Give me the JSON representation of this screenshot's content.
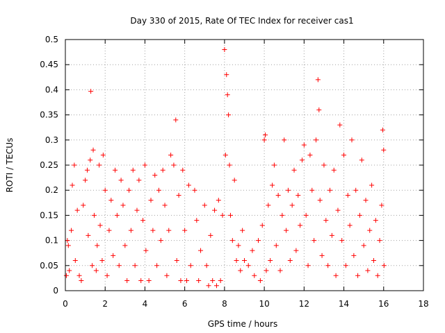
{
  "chart_data": {
    "type": "scatter",
    "title": "Day 330 of 2015, Rate Of TEC Index for receiver cas1",
    "xlabel": "GPS time / hours",
    "ylabel": "ROTI / TECUs",
    "xlim": [
      0,
      18
    ],
    "ylim": [
      0,
      0.5
    ],
    "grid": true,
    "marker": "+",
    "marker_color": "#ff0000",
    "x_ticks": [
      0,
      2,
      4,
      6,
      8,
      10,
      12,
      14,
      16,
      18
    ],
    "x_tick_labels": [
      "0",
      "2",
      "4",
      "6",
      "8",
      "10",
      "12",
      "14",
      "16",
      "18"
    ],
    "y_ticks": [
      0,
      0.05,
      0.1,
      0.15,
      0.2,
      0.25,
      0.3,
      0.35,
      0.4,
      0.45,
      0.5
    ],
    "y_tick_labels": [
      "0",
      "0.05",
      "0.1",
      "0.15",
      "0.2",
      "0.25",
      "0.3",
      "0.35",
      "0.4",
      "0.45",
      "0.5"
    ],
    "series": [
      {
        "name": "ROTI cas1",
        "points": [
          [
            0.05,
            0.03
          ],
          [
            0.1,
            0.1
          ],
          [
            0.15,
            0.09
          ],
          [
            0.2,
            0.04
          ],
          [
            0.3,
            0.12
          ],
          [
            0.35,
            0.21
          ],
          [
            0.45,
            0.25
          ],
          [
            0.5,
            0.06
          ],
          [
            0.6,
            0.16
          ],
          [
            0.7,
            0.03
          ],
          [
            0.8,
            0.02
          ],
          [
            0.9,
            0.17
          ],
          [
            1.0,
            0.22
          ],
          [
            1.1,
            0.24
          ],
          [
            1.15,
            0.11
          ],
          [
            1.25,
            0.26
          ],
          [
            1.28,
            0.397
          ],
          [
            1.35,
            0.05
          ],
          [
            1.4,
            0.28
          ],
          [
            1.45,
            0.15
          ],
          [
            1.55,
            0.04
          ],
          [
            1.6,
            0.09
          ],
          [
            1.7,
            0.25
          ],
          [
            1.75,
            0.13
          ],
          [
            1.85,
            0.06
          ],
          [
            1.9,
            0.27
          ],
          [
            2.0,
            0.2
          ],
          [
            2.1,
            0.03
          ],
          [
            2.2,
            0.12
          ],
          [
            2.3,
            0.18
          ],
          [
            2.4,
            0.07
          ],
          [
            2.5,
            0.24
          ],
          [
            2.6,
            0.15
          ],
          [
            2.7,
            0.05
          ],
          [
            2.8,
            0.22
          ],
          [
            2.9,
            0.17
          ],
          [
            3.0,
            0.09
          ],
          [
            3.1,
            0.02
          ],
          [
            3.2,
            0.2
          ],
          [
            3.3,
            0.12
          ],
          [
            3.4,
            0.24
          ],
          [
            3.5,
            0.05
          ],
          [
            3.6,
            0.16
          ],
          [
            3.7,
            0.22
          ],
          [
            3.8,
            0.02
          ],
          [
            3.9,
            0.14
          ],
          [
            4.0,
            0.25
          ],
          [
            4.05,
            0.08
          ],
          [
            4.2,
            0.02
          ],
          [
            4.3,
            0.18
          ],
          [
            4.4,
            0.12
          ],
          [
            4.5,
            0.23
          ],
          [
            4.6,
            0.05
          ],
          [
            4.7,
            0.2
          ],
          [
            4.8,
            0.1
          ],
          [
            4.9,
            0.24
          ],
          [
            5.0,
            0.17
          ],
          [
            5.1,
            0.03
          ],
          [
            5.2,
            0.12
          ],
          [
            5.3,
            0.27
          ],
          [
            5.45,
            0.25
          ],
          [
            5.55,
            0.34
          ],
          [
            5.6,
            0.06
          ],
          [
            5.7,
            0.19
          ],
          [
            5.8,
            0.02
          ],
          [
            5.9,
            0.24
          ],
          [
            6.0,
            0.12
          ],
          [
            6.1,
            0.02
          ],
          [
            6.2,
            0.21
          ],
          [
            6.3,
            0.05
          ],
          [
            6.5,
            0.2
          ],
          [
            6.6,
            0.14
          ],
          [
            6.7,
            0.02
          ],
          [
            6.8,
            0.08
          ],
          [
            7.0,
            0.17
          ],
          [
            7.1,
            0.05
          ],
          [
            7.2,
            0.01
          ],
          [
            7.3,
            0.11
          ],
          [
            7.4,
            0.02
          ],
          [
            7.5,
            0.16
          ],
          [
            7.6,
            0.01
          ],
          [
            7.7,
            0.18
          ],
          [
            7.8,
            0.02
          ],
          [
            7.9,
            0.15
          ],
          [
            8.0,
            0.48
          ],
          [
            8.05,
            0.27
          ],
          [
            8.1,
            0.43
          ],
          [
            8.15,
            0.39
          ],
          [
            8.2,
            0.35
          ],
          [
            8.25,
            0.25
          ],
          [
            8.3,
            0.15
          ],
          [
            8.4,
            0.1
          ],
          [
            8.5,
            0.22
          ],
          [
            8.6,
            0.06
          ],
          [
            8.7,
            0.09
          ],
          [
            8.8,
            0.04
          ],
          [
            8.9,
            0.12
          ],
          [
            9.0,
            0.06
          ],
          [
            9.2,
            0.05
          ],
          [
            9.4,
            0.08
          ],
          [
            9.5,
            0.03
          ],
          [
            9.7,
            0.1
          ],
          [
            9.8,
            0.02
          ],
          [
            9.9,
            0.13
          ],
          [
            10.0,
            0.3
          ],
          [
            10.05,
            0.31
          ],
          [
            10.1,
            0.04
          ],
          [
            10.2,
            0.17
          ],
          [
            10.3,
            0.06
          ],
          [
            10.4,
            0.21
          ],
          [
            10.5,
            0.25
          ],
          [
            10.6,
            0.09
          ],
          [
            10.7,
            0.19
          ],
          [
            10.8,
            0.04
          ],
          [
            10.9,
            0.15
          ],
          [
            11.0,
            0.3
          ],
          [
            11.1,
            0.12
          ],
          [
            11.2,
            0.2
          ],
          [
            11.3,
            0.06
          ],
          [
            11.4,
            0.17
          ],
          [
            11.5,
            0.24
          ],
          [
            11.6,
            0.08
          ],
          [
            11.7,
            0.19
          ],
          [
            11.8,
            0.13
          ],
          [
            11.9,
            0.26
          ],
          [
            12.0,
            0.29
          ],
          [
            12.1,
            0.15
          ],
          [
            12.2,
            0.05
          ],
          [
            12.3,
            0.27
          ],
          [
            12.4,
            0.2
          ],
          [
            12.5,
            0.1
          ],
          [
            12.6,
            0.3
          ],
          [
            12.7,
            0.42
          ],
          [
            12.75,
            0.36
          ],
          [
            12.8,
            0.18
          ],
          [
            12.9,
            0.07
          ],
          [
            13.0,
            0.25
          ],
          [
            13.1,
            0.14
          ],
          [
            13.2,
            0.05
          ],
          [
            13.3,
            0.2
          ],
          [
            13.4,
            0.11
          ],
          [
            13.5,
            0.24
          ],
          [
            13.6,
            0.03
          ],
          [
            13.7,
            0.16
          ],
          [
            13.8,
            0.33
          ],
          [
            13.9,
            0.1
          ],
          [
            14.0,
            0.27
          ],
          [
            14.1,
            0.05
          ],
          [
            14.2,
            0.19
          ],
          [
            14.3,
            0.13
          ],
          [
            14.4,
            0.3
          ],
          [
            14.5,
            0.07
          ],
          [
            14.6,
            0.2
          ],
          [
            14.7,
            0.03
          ],
          [
            14.8,
            0.15
          ],
          [
            14.9,
            0.26
          ],
          [
            15.0,
            0.09
          ],
          [
            15.1,
            0.18
          ],
          [
            15.2,
            0.04
          ],
          [
            15.3,
            0.12
          ],
          [
            15.4,
            0.21
          ],
          [
            15.5,
            0.06
          ],
          [
            15.6,
            0.14
          ],
          [
            15.7,
            0.03
          ],
          [
            15.8,
            0.1
          ],
          [
            15.9,
            0.17
          ],
          [
            15.95,
            0.32
          ],
          [
            16.0,
            0.28
          ],
          [
            16.02,
            0.05
          ]
        ]
      }
    ]
  }
}
